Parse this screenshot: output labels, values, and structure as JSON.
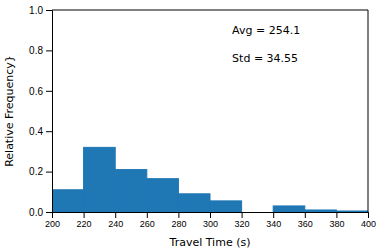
{
  "chart_data": {
    "type": "histogram",
    "bins": [
      200,
      220,
      240,
      260,
      280,
      300,
      320,
      340,
      360,
      380,
      400
    ],
    "values": [
      0.11,
      0.32,
      0.21,
      0.165,
      0.09,
      0.055,
      0.0,
      0.03,
      0.01,
      0.005
    ],
    "color": "#1f77b4",
    "xlabel": "Travel Time (s)",
    "ylabel": "Relative Frequency}",
    "xlim": [
      200,
      400
    ],
    "ylim": [
      0,
      1.0
    ],
    "xticks": [
      200,
      220,
      240,
      260,
      280,
      300,
      320,
      340,
      360,
      380,
      400
    ],
    "yticks": [
      {
        "value": 0.0,
        "label": "0.0"
      },
      0.2,
      0.4,
      0.6,
      0.8,
      {
        "value": 1.0,
        "label": "1.0"
      }
    ],
    "annotations": [
      "Avg = 254.1",
      "Std = 34.55"
    ],
    "grid": false
  }
}
